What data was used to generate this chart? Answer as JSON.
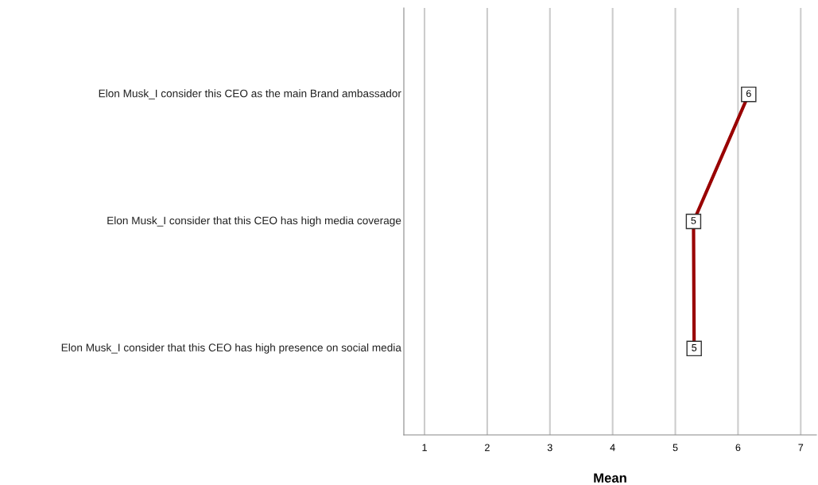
{
  "chart_data": {
    "type": "line",
    "orientation": "horizontal",
    "xlabel": "Mean",
    "categories": [
      "Elon Musk_I consider this CEO as the main Brand ambassador",
      "Elon Musk_I consider that this CEO has high media coverage",
      "Elon Musk_I consider that this CEO has high presence on social media"
    ],
    "series": [
      {
        "color": "#990000",
        "values": [
          6.17,
          5.29,
          5.3
        ],
        "value_labels": [
          "6",
          "5",
          "5"
        ]
      }
    ],
    "xlim": [
      0.67,
      7.25
    ],
    "xticks": [
      1,
      2,
      3,
      4,
      5,
      6,
      7
    ],
    "grid": "x",
    "marker": "square",
    "line_style": "solid"
  }
}
